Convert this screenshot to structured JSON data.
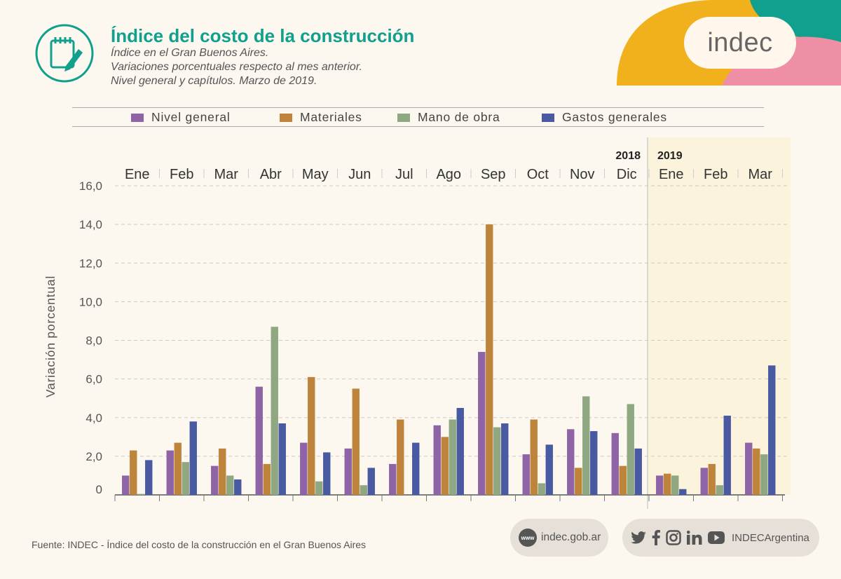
{
  "header": {
    "title": "Índice del costo de la construcción",
    "subtitle_lines": [
      "Índice en el Gran Buenos Aires.",
      "Variaciones porcentuales respecto al mes anterior.",
      "Nivel general y capítulos. Marzo de 2019."
    ],
    "icon": "notepad-pencil-icon",
    "logo_text": "indec"
  },
  "colors": {
    "accent": "#12a08e",
    "background": "#fcf8ef",
    "highlight": "#fbf3dc",
    "nivel_general": "#8e64a6",
    "materiales": "#bf843b",
    "mano_de_obra": "#8fa882",
    "gastos_generales": "#4a5aa2"
  },
  "chart_data": {
    "type": "bar",
    "title": "",
    "xlabel": "",
    "ylabel": "Variación porcentual",
    "ylim": [
      0,
      16
    ],
    "yticks": [
      "0",
      "2,0",
      "4,0",
      "6,0",
      "8,0",
      "10,0",
      "12,0",
      "14,0",
      "16,0"
    ],
    "grid": true,
    "legend_position": "top",
    "categories": [
      "Ene",
      "Feb",
      "Mar",
      "Abr",
      "May",
      "Jun",
      "Jul",
      "Ago",
      "Sep",
      "Oct",
      "Nov",
      "Dic",
      "Ene",
      "Feb",
      "Mar"
    ],
    "year_labels": [
      {
        "label": "2018",
        "category_index": 11
      },
      {
        "label": "2019",
        "category_index": 12
      }
    ],
    "highlighted_categories": [
      12,
      13,
      14
    ],
    "series": [
      {
        "name": "Nivel general",
        "color": "#8e64a6",
        "values": [
          1.0,
          2.3,
          1.5,
          5.6,
          2.7,
          2.4,
          1.6,
          3.6,
          7.4,
          2.1,
          3.4,
          3.2,
          1.0,
          1.4,
          2.7
        ]
      },
      {
        "name": "Materiales",
        "color": "#bf843b",
        "values": [
          2.3,
          2.7,
          2.4,
          1.6,
          6.1,
          5.5,
          3.9,
          3.0,
          14.0,
          3.9,
          1.4,
          1.5,
          1.1,
          1.6,
          2.4
        ]
      },
      {
        "name": "Mano de obra",
        "color": "#8fa882",
        "values": [
          0.05,
          1.7,
          1.0,
          8.7,
          0.7,
          0.5,
          0.0,
          3.9,
          3.5,
          0.6,
          5.1,
          4.7,
          1.0,
          0.5,
          2.1
        ]
      },
      {
        "name": "Gastos generales",
        "color": "#4a5aa2",
        "values": [
          1.8,
          3.8,
          0.8,
          3.7,
          2.2,
          1.4,
          2.7,
          4.5,
          3.7,
          2.6,
          3.3,
          2.4,
          0.3,
          4.1,
          6.7
        ]
      }
    ]
  },
  "footer": {
    "source": "Fuente: INDEC - Índice del costo de la construcción en el Gran Buenos Aires",
    "website": "indec.gob.ar",
    "www_badge": "www",
    "social_handle": "INDECArgentina",
    "social_icons": [
      "twitter-icon",
      "facebook-icon",
      "instagram-icon",
      "linkedin-icon",
      "youtube-icon"
    ]
  }
}
